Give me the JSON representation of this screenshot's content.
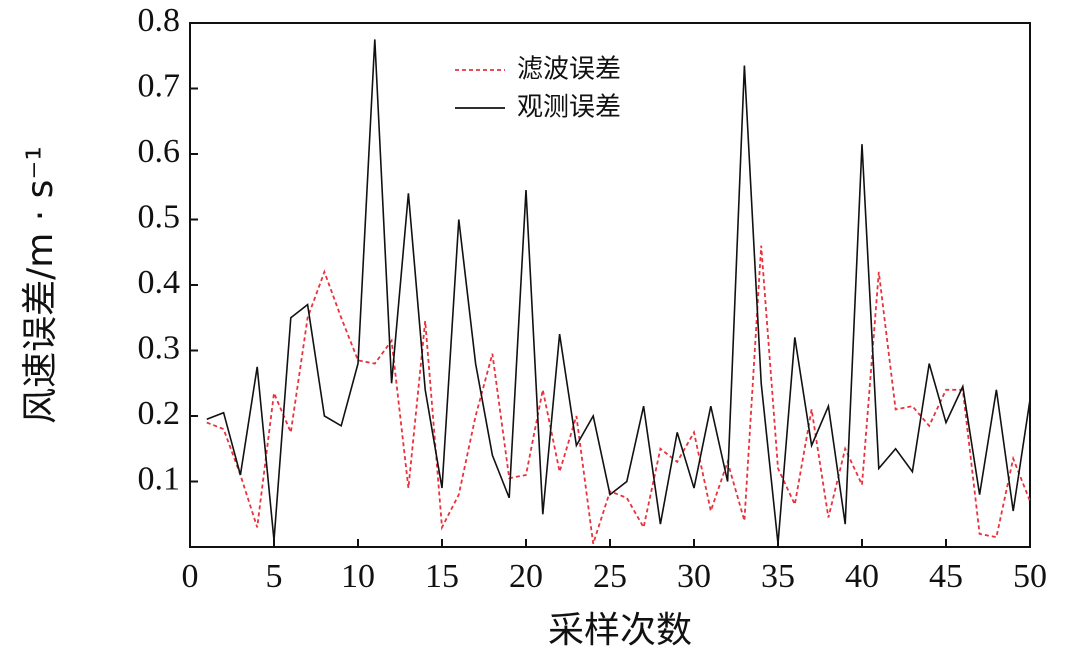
{
  "chart_data": {
    "type": "line",
    "xlabel": "采样次数",
    "ylabel": "风速误差/m · s⁻¹",
    "x": [
      1,
      2,
      3,
      4,
      5,
      6,
      7,
      8,
      9,
      10,
      11,
      12,
      13,
      14,
      15,
      16,
      17,
      18,
      19,
      20,
      21,
      22,
      23,
      24,
      25,
      26,
      27,
      28,
      29,
      30,
      31,
      32,
      33,
      34,
      35,
      36,
      37,
      38,
      39,
      40,
      41,
      42,
      43,
      44,
      45,
      46,
      47,
      48,
      49,
      50
    ],
    "series": [
      {
        "name": "滤波误差",
        "color": "#e8323c",
        "dash": true,
        "values": [
          0.19,
          0.18,
          0.11,
          0.03,
          0.235,
          0.175,
          0.35,
          0.42,
          0.35,
          0.285,
          0.28,
          0.315,
          0.09,
          0.345,
          0.03,
          0.08,
          0.2,
          0.295,
          0.105,
          0.11,
          0.24,
          0.115,
          0.2,
          0.005,
          0.085,
          0.075,
          0.03,
          0.15,
          0.13,
          0.175,
          0.055,
          0.13,
          0.04,
          0.46,
          0.12,
          0.065,
          0.21,
          0.045,
          0.15,
          0.095,
          0.42,
          0.21,
          0.215,
          0.185,
          0.24,
          0.24,
          0.02,
          0.015,
          0.135,
          0.07
        ]
      },
      {
        "name": "观测误差",
        "color": "#111111",
        "dash": false,
        "values": [
          0.195,
          0.205,
          0.11,
          0.275,
          0.01,
          0.35,
          0.37,
          0.2,
          0.185,
          0.28,
          0.775,
          0.25,
          0.54,
          0.24,
          0.09,
          0.5,
          0.28,
          0.14,
          0.075,
          0.545,
          0.05,
          0.325,
          0.155,
          0.2,
          0.08,
          0.1,
          0.215,
          0.035,
          0.175,
          0.09,
          0.215,
          0.1,
          0.735,
          0.25,
          0.005,
          0.32,
          0.155,
          0.215,
          0.035,
          0.615,
          0.12,
          0.15,
          0.115,
          0.28,
          0.19,
          0.245,
          0.08,
          0.24,
          0.055,
          0.225
        ]
      }
    ],
    "xlim": [
      0,
      50
    ],
    "xticks": [
      0,
      5,
      10,
      15,
      20,
      25,
      30,
      35,
      40,
      45,
      50
    ],
    "ylim": [
      0,
      0.8
    ],
    "yticks": [
      0.1,
      0.2,
      0.3,
      0.4,
      0.5,
      0.6,
      0.7,
      0.8
    ],
    "grid": false,
    "legend": "upper center"
  }
}
